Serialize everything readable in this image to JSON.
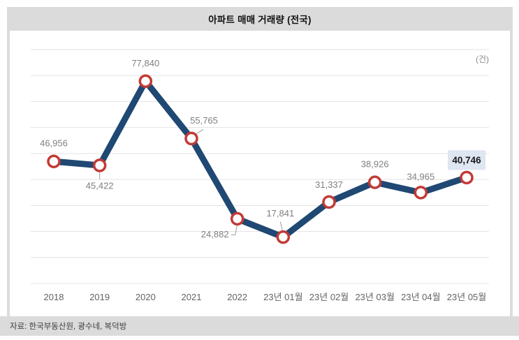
{
  "header": {
    "title": "아파트 매매 거래량 (전국)"
  },
  "footer": {
    "source": "자료: 한국부동산원, 광수네, 복덕방"
  },
  "chart_data": {
    "type": "line",
    "title": "아파트 매매 거래량 (전국)",
    "unit_label": "(건)",
    "categories": [
      "2018",
      "2019",
      "2020",
      "2021",
      "2022",
      "23년 01월",
      "23년 02월",
      "23년 03월",
      "23년 04월",
      "23년 05월"
    ],
    "values": [
      46956,
      45422,
      77840,
      55765,
      24882,
      17841,
      31337,
      38926,
      34965,
      40746
    ],
    "value_labels": [
      "46,956",
      "45,422",
      "77,840",
      "55,765",
      "24,882",
      "17,841",
      "31,337",
      "38,926",
      "34,965",
      "40,746"
    ],
    "highlight_index": 9,
    "ylim": [
      0,
      90000
    ],
    "grid_interval": 10000,
    "grid": true,
    "y_axis_labels_shown": false,
    "legend": "none",
    "colors": {
      "line": "#1f4872",
      "marker_fill": "#ffffff",
      "marker_stroke": "#c23a35",
      "grid": "#e3e3e3",
      "value_label": "#7f7f7f",
      "axis_label": "#636363",
      "leader": "#9e9e9e",
      "highlight_box": "#dde6f1",
      "highlight_text": "#1a1a1a",
      "band": "#dbdbdb"
    }
  }
}
